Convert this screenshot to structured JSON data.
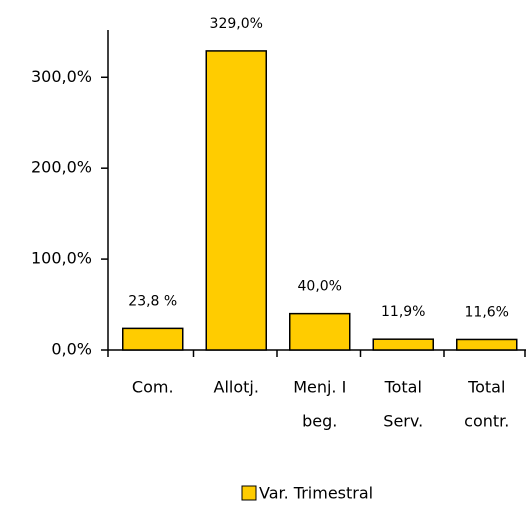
{
  "chart_data": {
    "type": "bar",
    "categories": [
      [
        "Com."
      ],
      [
        "Allotj."
      ],
      [
        "Menj. I",
        "beg."
      ],
      [
        "Total",
        "Serv."
      ],
      [
        "Total",
        "contr."
      ]
    ],
    "series": [
      {
        "name": "Var. Trimestral",
        "color": "#ffcc00",
        "values": [
          23.8,
          329.0,
          40.0,
          11.9,
          11.6
        ],
        "value_labels": [
          "23,8 %",
          "329,0%",
          "40,0%",
          "11,9%",
          "11,6%"
        ]
      }
    ],
    "ylim": [
      0,
      352
    ],
    "yticks": [
      {
        "value": 0,
        "label": "0,0%"
      },
      {
        "value": 100,
        "label": "100,0%"
      },
      {
        "value": 200,
        "label": "200,0%"
      },
      {
        "value": 300,
        "label": "300,0%"
      }
    ],
    "grid": false,
    "legend": "bottom"
  }
}
